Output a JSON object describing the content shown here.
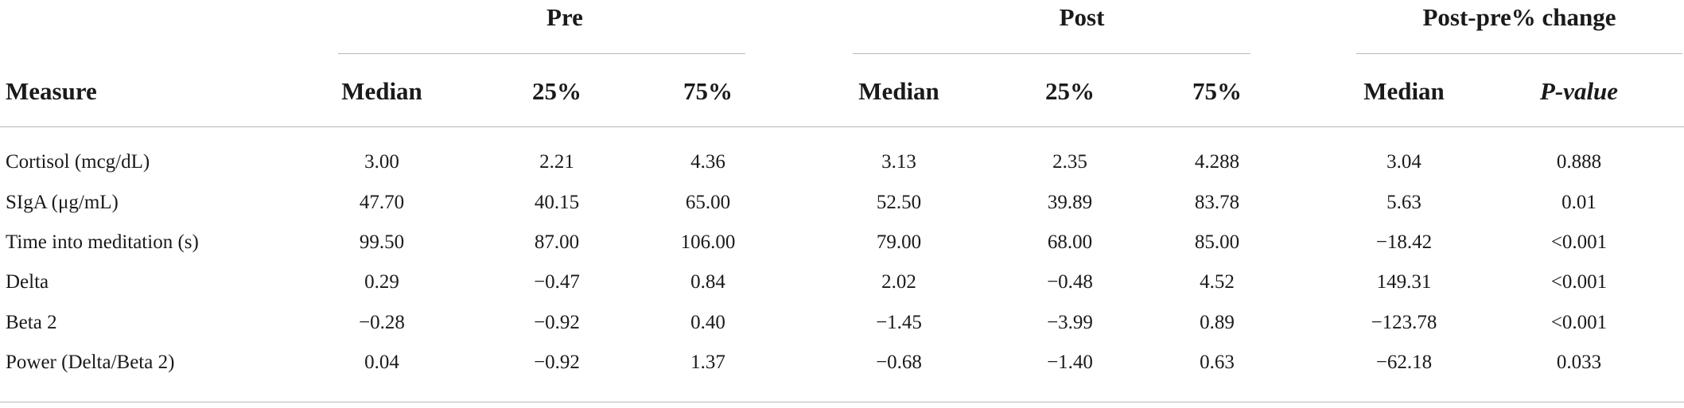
{
  "table": {
    "groups": [
      {
        "label": "Pre"
      },
      {
        "label": "Post"
      },
      {
        "label": "Post-pre% change"
      }
    ],
    "columns": [
      "Measure",
      "Median",
      "25%",
      "75%",
      "Median",
      "25%",
      "75%",
      "Median",
      "P-value"
    ],
    "rows": [
      [
        "Cortisol (mcg/dL)",
        "3.00",
        "2.21",
        "4.36",
        "3.13",
        "2.35",
        "4.288",
        "3.04",
        "0.888"
      ],
      [
        "SIgA (μg/mL)",
        "47.70",
        "40.15",
        "65.00",
        "52.50",
        "39.89",
        "83.78",
        "5.63",
        "0.01"
      ],
      [
        "Time into meditation (s)",
        "99.50",
        "87.00",
        "106.00",
        "79.00",
        "68.00",
        "85.00",
        "−18.42",
        "<0.001"
      ],
      [
        "Delta",
        "0.29",
        "−0.47",
        "0.84",
        "2.02",
        "−0.48",
        "4.52",
        "149.31",
        "<0.001"
      ],
      [
        "Beta 2",
        "−0.28",
        "−0.92",
        "0.40",
        "−1.45",
        "−3.99",
        "0.89",
        "−123.78",
        "<0.001"
      ],
      [
        "Power (Delta/Beta 2)",
        "0.04",
        "−0.92",
        "1.37",
        "−0.68",
        "−1.40",
        "0.63",
        "−62.18",
        "0.033"
      ]
    ]
  }
}
